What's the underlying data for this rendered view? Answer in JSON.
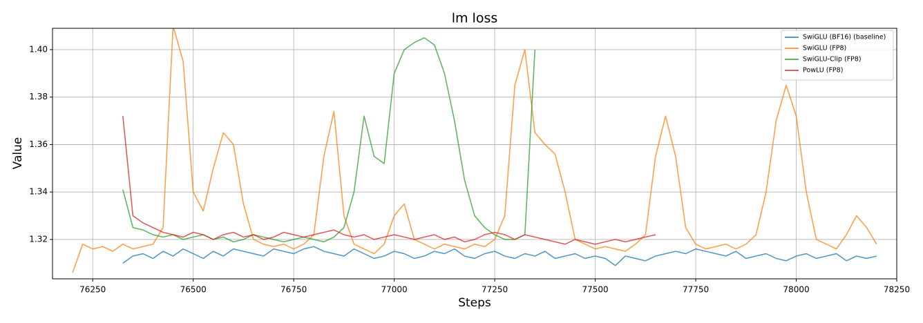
{
  "chart_data": {
    "type": "line",
    "title": "lm loss",
    "x_label": "Steps",
    "y_label": "Value",
    "x": [
      76200,
      76225,
      76250,
      76275,
      76300,
      76325,
      76350,
      76375,
      76400,
      76425,
      76450,
      76475,
      76500,
      76525,
      76550,
      76575,
      76600,
      76625,
      76650,
      76675,
      76700,
      76725,
      76750,
      76775,
      76800,
      76825,
      76850,
      76875,
      76900,
      76925,
      76950,
      76975,
      77000,
      77025,
      77050,
      77075,
      77100,
      77125,
      77150,
      77175,
      77200,
      77225,
      77250,
      77275,
      77300,
      77325,
      77350,
      77375,
      77400,
      77425,
      77450,
      77475,
      77500,
      77525,
      77550,
      77575,
      77600,
      77625,
      77650,
      77675,
      77700,
      77725,
      77750,
      77775,
      77800,
      77825,
      77850,
      77875,
      77900,
      77925,
      77950,
      77975,
      78000,
      78025,
      78050,
      78075,
      78100,
      78125,
      78150,
      78175,
      78200
    ],
    "series": [
      {
        "name": "SwiGLU (BF16) (baseline)",
        "color": "#1f77b4",
        "values": [
          null,
          null,
          null,
          null,
          null,
          1.31,
          1.313,
          1.314,
          1.312,
          1.315,
          1.313,
          1.316,
          1.314,
          1.312,
          1.315,
          1.313,
          1.316,
          1.315,
          1.314,
          1.313,
          1.316,
          1.315,
          1.314,
          1.316,
          1.317,
          1.315,
          1.314,
          1.313,
          1.316,
          1.314,
          1.312,
          1.313,
          1.315,
          1.314,
          1.312,
          1.313,
          1.315,
          1.314,
          1.316,
          1.313,
          1.312,
          1.314,
          1.315,
          1.313,
          1.312,
          1.314,
          1.313,
          1.315,
          1.312,
          1.313,
          1.314,
          1.312,
          1.313,
          1.312,
          1.309,
          1.313,
          1.312,
          1.311,
          1.313,
          1.314,
          1.315,
          1.314,
          1.316,
          1.315,
          1.314,
          1.313,
          1.315,
          1.312,
          1.313,
          1.314,
          1.312,
          1.311,
          1.313,
          1.314,
          1.312,
          1.313,
          1.314,
          1.311,
          1.313,
          1.312,
          1.313
        ]
      },
      {
        "name": "SwiGLU (FP8)",
        "color": "#ff7f0e",
        "values": [
          1.306,
          1.318,
          1.316,
          1.317,
          1.315,
          1.318,
          1.316,
          1.317,
          1.318,
          1.325,
          1.41,
          1.395,
          1.34,
          1.332,
          1.35,
          1.365,
          1.36,
          1.335,
          1.32,
          1.318,
          1.317,
          1.318,
          1.316,
          1.318,
          1.322,
          1.355,
          1.374,
          1.33,
          1.318,
          1.316,
          1.314,
          1.318,
          1.33,
          1.335,
          1.32,
          1.318,
          1.316,
          1.318,
          1.317,
          1.316,
          1.318,
          1.317,
          1.32,
          1.33,
          1.385,
          1.4,
          1.365,
          1.36,
          1.356,
          1.34,
          1.32,
          1.318,
          1.316,
          1.317,
          1.316,
          1.315,
          1.318,
          1.322,
          1.355,
          1.372,
          1.355,
          1.325,
          1.318,
          1.316,
          1.317,
          1.318,
          1.316,
          1.318,
          1.322,
          1.34,
          1.37,
          1.385,
          1.372,
          1.34,
          1.32,
          1.318,
          1.316,
          1.322,
          1.33,
          1.325,
          1.318
        ]
      },
      {
        "name": "SwiGLU-Clip (FP8)",
        "color": "#2ca02c",
        "values": [
          null,
          null,
          null,
          null,
          null,
          1.341,
          1.325,
          1.324,
          1.322,
          1.321,
          1.322,
          1.32,
          1.321,
          1.322,
          1.32,
          1.321,
          1.319,
          1.32,
          1.322,
          1.321,
          1.32,
          1.319,
          1.32,
          1.321,
          1.32,
          1.319,
          1.321,
          1.325,
          1.34,
          1.372,
          1.355,
          1.352,
          1.39,
          1.4,
          1.403,
          1.405,
          1.402,
          1.39,
          1.37,
          1.345,
          1.33,
          1.325,
          1.322,
          1.32,
          1.32,
          1.322,
          1.4,
          null,
          null,
          null,
          null,
          null,
          null,
          null,
          null,
          null,
          null,
          null,
          null,
          null,
          null,
          null,
          null,
          null,
          null,
          null,
          null,
          null,
          null,
          null,
          null,
          null,
          null,
          null,
          null,
          null,
          null,
          null,
          null,
          null,
          null
        ]
      },
      {
        "name": "PowLU (FP8)",
        "color": "#d62728",
        "values": [
          null,
          null,
          null,
          null,
          null,
          1.372,
          1.33,
          1.327,
          1.325,
          1.323,
          1.322,
          1.321,
          1.323,
          1.322,
          1.32,
          1.322,
          1.323,
          1.321,
          1.322,
          1.32,
          1.321,
          1.323,
          1.322,
          1.321,
          1.322,
          1.323,
          1.324,
          1.322,
          1.321,
          1.322,
          1.32,
          1.321,
          1.322,
          1.321,
          1.32,
          1.321,
          1.322,
          1.32,
          1.321,
          1.319,
          1.32,
          1.322,
          1.323,
          1.322,
          1.32,
          1.322,
          1.321,
          1.32,
          1.319,
          1.318,
          1.32,
          1.319,
          1.318,
          1.319,
          1.32,
          1.319,
          1.32,
          1.321,
          1.322,
          null,
          null,
          null,
          null,
          null,
          null,
          null,
          null,
          null,
          null,
          null,
          null,
          null,
          null,
          null,
          null,
          null,
          null,
          null,
          null,
          null,
          null
        ]
      }
    ],
    "xlim": [
      76150,
      78250
    ],
    "ylim": [
      1.3034,
      1.409
    ],
    "xticks": [
      76250,
      76500,
      76750,
      77000,
      77250,
      77500,
      77750,
      78000,
      78250
    ],
    "yticks": [
      1.32,
      1.34,
      1.36,
      1.38,
      {
        "value": 1.4,
        "label": "1.40"
      }
    ],
    "grid": true,
    "legend": "upper right"
  }
}
